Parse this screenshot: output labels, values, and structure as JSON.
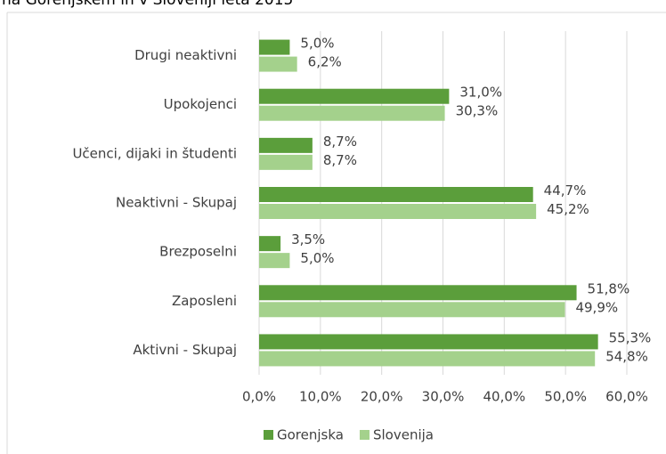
{
  "chart_data": {
    "type": "bar",
    "orientation": "horizontal",
    "title": "na Gorenjskem in v Sloveniji leta 2015",
    "categories": [
      "Drugi neaktivni",
      "Upokojenci",
      "Učenci, dijaki in študenti",
      "Neaktivni - Skupaj",
      "Brezposelni",
      "Zaposleni",
      "Aktivni - Skupaj"
    ],
    "series": [
      {
        "name": "Gorenjska",
        "color": "#5b9e3b",
        "values": [
          5.0,
          31.0,
          8.7,
          44.7,
          3.5,
          51.8,
          55.3
        ],
        "value_labels": [
          "5,0%",
          "31,0%",
          "8,7%",
          "44,7%",
          "3,5%",
          "51,8%",
          "55,3%"
        ]
      },
      {
        "name": "Slovenija",
        "color": "#a4d18c",
        "values": [
          6.2,
          30.3,
          8.7,
          45.2,
          5.0,
          49.9,
          54.8
        ],
        "value_labels": [
          "6,2%",
          "30,3%",
          "8,7%",
          "45,2%",
          "5,0%",
          "49,9%",
          "54,8%"
        ]
      }
    ],
    "xlim": [
      0,
      60
    ],
    "xticks": [
      {
        "value": 0,
        "label": "0,0%"
      },
      {
        "value": 10,
        "label": "10,0%"
      },
      {
        "value": 20,
        "label": "20,0%"
      },
      {
        "value": 30,
        "label": "30,0%"
      },
      {
        "value": 40,
        "label": "40,0%"
      },
      {
        "value": 50,
        "label": "50,0%"
      },
      {
        "value": 60,
        "label": "60,0%"
      }
    ],
    "grid": true,
    "legend": "bottom"
  }
}
